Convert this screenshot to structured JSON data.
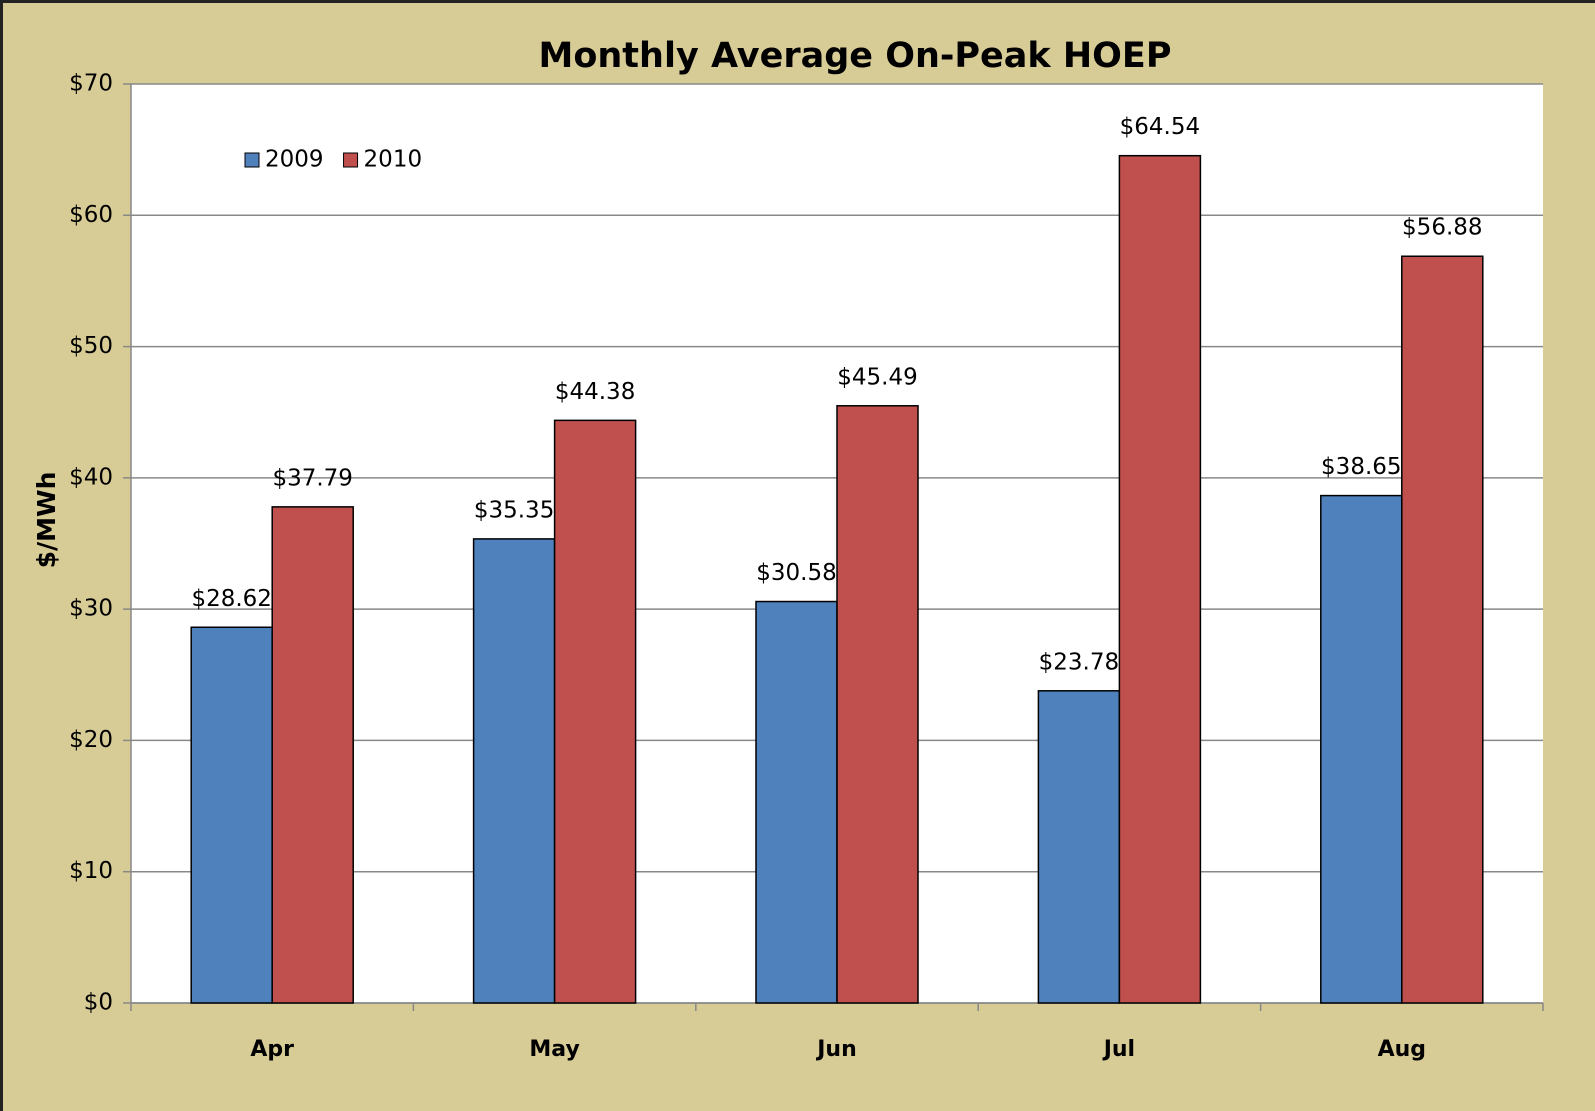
{
  "chart_data": {
    "type": "bar",
    "title": "Monthly Average On-Peak HOEP",
    "y_label": "$/MWh",
    "categories": [
      "Apr",
      "May",
      "Jun",
      "Jul",
      "Aug"
    ],
    "series": [
      {
        "name": "2009",
        "color": "#4f81bd",
        "values": [
          28.62,
          35.35,
          30.58,
          23.78,
          38.65
        ],
        "value_labels": [
          "$28.62",
          "$35.35",
          "$30.58",
          "$23.78",
          "$38.65"
        ]
      },
      {
        "name": "2010",
        "color": "#c0504d",
        "values": [
          37.79,
          44.38,
          45.49,
          64.54,
          56.88
        ],
        "value_labels": [
          "$37.79",
          "$44.38",
          "$45.49",
          "$64.54",
          "$56.88"
        ]
      }
    ],
    "ylim": [
      0,
      70
    ],
    "yticks": [
      {
        "value": 0,
        "label": "$0"
      },
      {
        "value": 10,
        "label": "$10"
      },
      {
        "value": 20,
        "label": "$20"
      },
      {
        "value": 30,
        "label": "$30"
      },
      {
        "value": 40,
        "label": "$40"
      },
      {
        "value": 50,
        "label": "$50"
      },
      {
        "value": 60,
        "label": "$60"
      },
      {
        "value": 70,
        "label": "$70"
      }
    ],
    "grid": true,
    "legend": "upper left"
  }
}
